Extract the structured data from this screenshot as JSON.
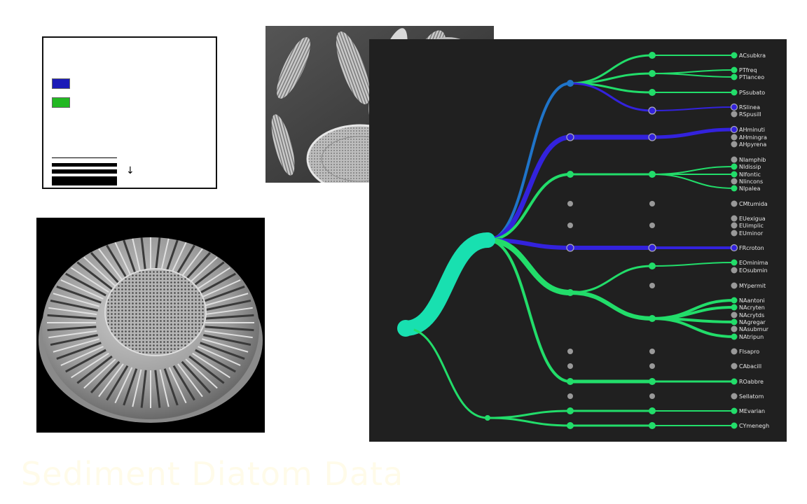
{
  "title": "Sediment Diatom Data",
  "legend": {
    "swatches": [
      {
        "color": "#1a1ab8"
      },
      {
        "color": "#22b822"
      }
    ],
    "arrow_glyph": "↓"
  },
  "colors": {
    "background": "#202020",
    "green": "#22dd6a",
    "blue": "#3322dd",
    "teal": "#18e0b0",
    "inactive": "#999999"
  },
  "leaves": [
    {
      "label": "ACsubkra",
      "active": true,
      "color": "green"
    },
    {
      "label": "PTfreq",
      "active": true,
      "color": "green"
    },
    {
      "label": "PTlanceo",
      "active": true,
      "color": "green"
    },
    {
      "label": "PSsubato",
      "active": true,
      "color": "green"
    },
    {
      "label": "RSlinea",
      "active": true,
      "color": "blue"
    },
    {
      "label": "RSpusill",
      "active": false
    },
    {
      "label": "AHminuti",
      "active": true,
      "color": "blue"
    },
    {
      "label": "AHmingra",
      "active": false
    },
    {
      "label": "AHpyrena",
      "active": false
    },
    {
      "label": "NIamphib",
      "active": false
    },
    {
      "label": "NIdissip",
      "active": true,
      "color": "green"
    },
    {
      "label": "NIfontic",
      "active": true,
      "color": "green"
    },
    {
      "label": "NIincons",
      "active": false
    },
    {
      "label": "NIpalea",
      "active": true,
      "color": "green"
    },
    {
      "label": "CMtumida",
      "active": false
    },
    {
      "label": "EUexigua",
      "active": false
    },
    {
      "label": "EUimplic",
      "active": false
    },
    {
      "label": "EUminor",
      "active": false
    },
    {
      "label": "FRcroton",
      "active": true,
      "color": "blue"
    },
    {
      "label": "EOminima",
      "active": true,
      "color": "green"
    },
    {
      "label": "EOsubmin",
      "active": false
    },
    {
      "label": "MYpermit",
      "active": false
    },
    {
      "label": "NAantoni",
      "active": true,
      "color": "green"
    },
    {
      "label": "NAcryten",
      "active": true,
      "color": "green"
    },
    {
      "label": "NAcrytds",
      "active": false
    },
    {
      "label": "NAgregar",
      "active": true,
      "color": "green"
    },
    {
      "label": "NAsubmur",
      "active": false
    },
    {
      "label": "NAtripun",
      "active": true,
      "color": "green"
    },
    {
      "label": "FIsapro",
      "active": false
    },
    {
      "label": "CAbacill",
      "active": false
    },
    {
      "label": "ROabbre",
      "active": true,
      "color": "green"
    },
    {
      "label": "SeIlatom",
      "active": false
    },
    {
      "label": "MEvarian",
      "active": true,
      "color": "green"
    },
    {
      "label": "CYmenegh",
      "active": true,
      "color": "green"
    }
  ]
}
